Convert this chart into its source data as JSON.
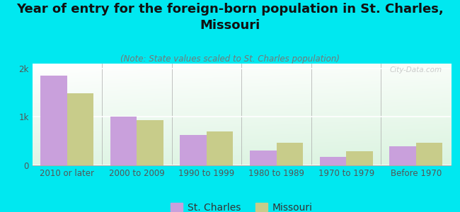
{
  "title": "Year of entry for the foreign-born population in St. Charles,\nMissouri",
  "subtitle": "(Note: State values scaled to St. Charles population)",
  "categories": [
    "2010 or later",
    "2000 to 2009",
    "1990 to 1999",
    "1980 to 1989",
    "1970 to 1979",
    "Before 1970"
  ],
  "st_charles_values": [
    1850,
    1000,
    620,
    310,
    175,
    390
  ],
  "missouri_values": [
    1490,
    930,
    700,
    470,
    285,
    460
  ],
  "st_charles_color": "#c9a0dc",
  "missouri_color": "#c8cc8a",
  "background_color": "#00e8f0",
  "bar_width": 0.38,
  "ylim": [
    0,
    2100
  ],
  "yticks": [
    0,
    1000,
    2000
  ],
  "ytick_labels": [
    "0",
    "1k",
    "2k"
  ],
  "legend_labels": [
    "St. Charles",
    "Missouri"
  ],
  "watermark": "City-Data.com",
  "title_fontsize": 13,
  "subtitle_fontsize": 8.5,
  "axis_label_fontsize": 8.5,
  "legend_fontsize": 10
}
